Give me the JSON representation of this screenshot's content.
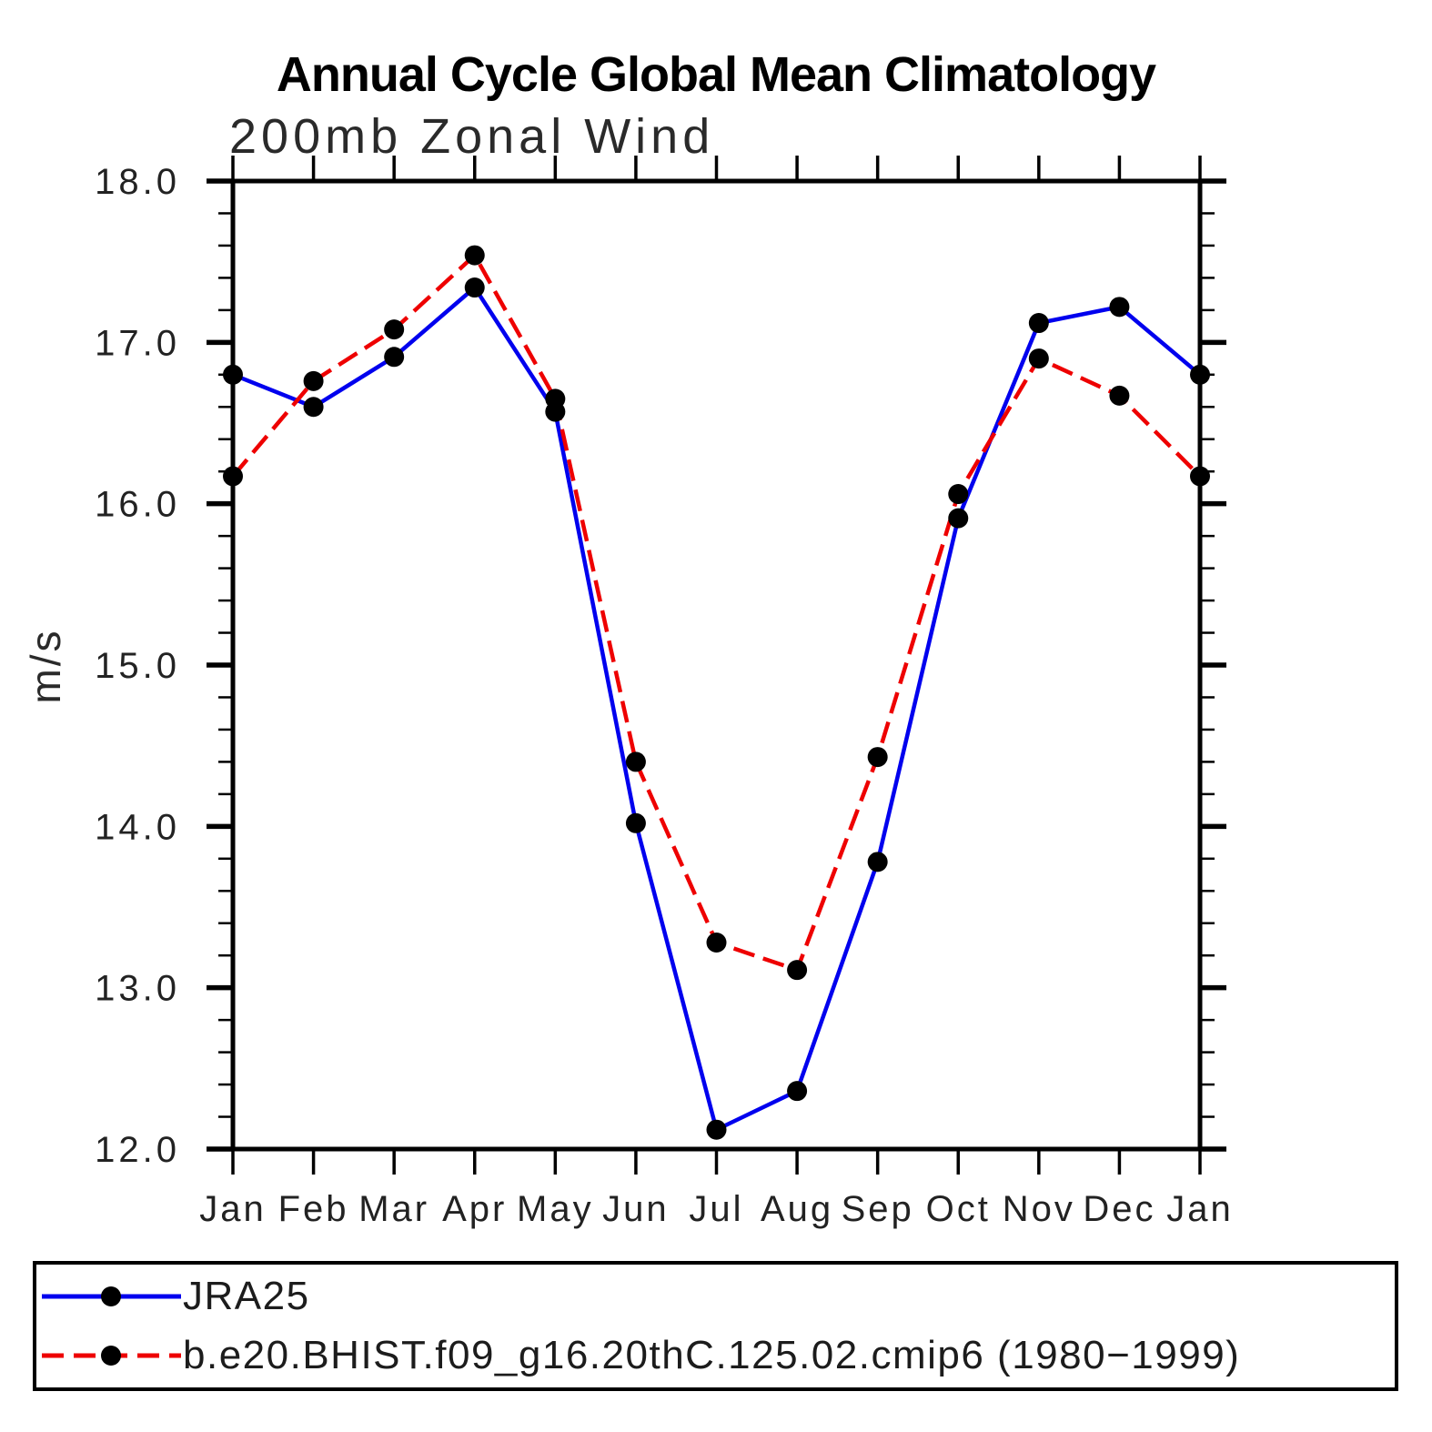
{
  "title": "Annual Cycle Global Mean Climatology",
  "subtitle": "200mb Zonal Wind",
  "ylabel": "m/s",
  "colors": {
    "jra25_line": "#0000ee",
    "model_line": "#ee0000",
    "marker": "#000000",
    "axis": "#000000"
  },
  "chart_data": {
    "type": "line",
    "title": "Annual Cycle Global Mean Climatology",
    "subtitle": "200mb Zonal Wind",
    "xlabel": "",
    "ylabel": "m/s",
    "ylim": [
      12.0,
      18.0
    ],
    "ytick_labels": [
      "18.0",
      "17.0",
      "16.0",
      "15.0",
      "14.0",
      "13.0",
      "12.0"
    ],
    "ytick_values": [
      18.0,
      17.0,
      16.0,
      15.0,
      14.0,
      13.0,
      12.0
    ],
    "y_minor_step": 0.2,
    "grid": "off",
    "legend_position": "bottom",
    "categories": [
      "Jan",
      "Feb",
      "Mar",
      "Apr",
      "May",
      "Jun",
      "Jul",
      "Aug",
      "Sep",
      "Oct",
      "Nov",
      "Dec",
      "Jan"
    ],
    "series": [
      {
        "name": "JRA25",
        "color": "#0000ee",
        "line_style": "solid",
        "marker": "filled-circle",
        "marker_color": "#000000",
        "values": [
          16.8,
          16.6,
          16.91,
          17.34,
          16.57,
          14.02,
          12.12,
          12.36,
          13.78,
          15.91,
          17.12,
          17.22,
          16.8
        ]
      },
      {
        "name": "b.e20.BHIST.f09_g16.20thC.125.02.cmip6 (1980−1999)",
        "color": "#ee0000",
        "line_style": "dashed",
        "marker": "filled-circle",
        "marker_color": "#000000",
        "values": [
          16.17,
          16.76,
          17.08,
          17.54,
          16.65,
          14.4,
          13.28,
          13.11,
          14.43,
          16.06,
          16.9,
          16.67,
          16.17
        ]
      }
    ]
  }
}
